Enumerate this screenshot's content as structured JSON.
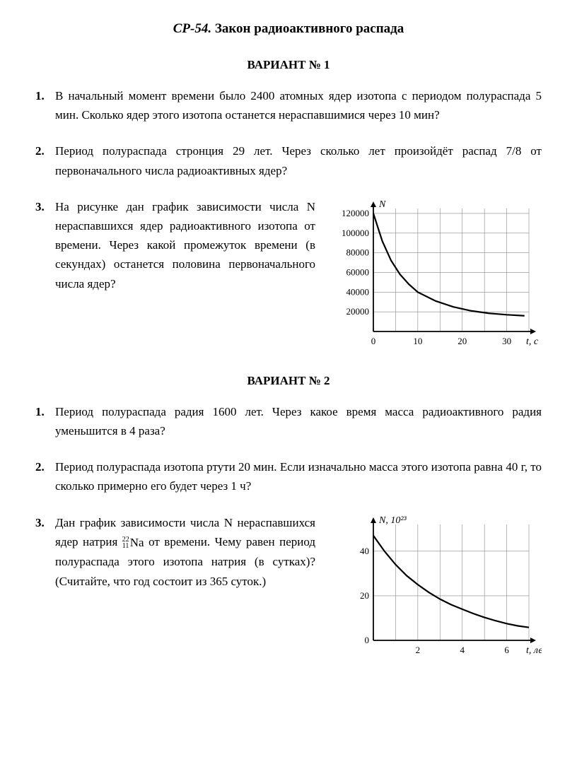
{
  "title_prefix": "СР-54.",
  "title_text": "Закон радиоактивного распада",
  "variant1": {
    "heading": "ВАРИАНТ № 1",
    "p1_num": "1.",
    "p1_text": "В начальный момент времени было 2400 атомных ядер изотопа с периодом полураспада 5 мин. Сколько ядер этого изотопа останется нераспавшимися через 10 мин?",
    "p2_num": "2.",
    "p2_text": "Период полураспада стронция 29 лет. Через сколько лет произойдёт распад 7/8 от первоначального числа радиоактивных ядер?",
    "p3_num": "3.",
    "p3_text": "На рисунке дан график зависимости числа N нераспавшихся ядер радиоактивного изотопа от времени. Через какой промежуток времени (в секундах) останется половина первоначального числа ядер?",
    "chart": {
      "type": "line",
      "y_label": "N",
      "x_label": "t, с",
      "y_ticks": [
        0,
        20000,
        40000,
        60000,
        80000,
        100000,
        120000
      ],
      "y_tick_labels": [
        "",
        "20000",
        "40000",
        "60000",
        "80000",
        "100000",
        "120000"
      ],
      "x_ticks": [
        0,
        10,
        20,
        30
      ],
      "x_tick_labels": [
        "0",
        "10",
        "20",
        "30"
      ],
      "xlim": [
        0,
        35
      ],
      "ylim": [
        0,
        125000
      ],
      "curve": [
        [
          0,
          120000
        ],
        [
          2,
          92000
        ],
        [
          4,
          72000
        ],
        [
          6,
          58000
        ],
        [
          8,
          48000
        ],
        [
          10,
          40000
        ],
        [
          14,
          31000
        ],
        [
          18,
          25000
        ],
        [
          22,
          21000
        ],
        [
          26,
          18500
        ],
        [
          30,
          17000
        ],
        [
          34,
          16000
        ]
      ],
      "line_color": "#000000",
      "line_width": 2.2,
      "grid_color": "#888888",
      "background_color": "#ffffff",
      "font_size": 13
    }
  },
  "variant2": {
    "heading": "ВАРИАНТ № 2",
    "p1_num": "1.",
    "p1_text": "Период полураспада радия 1600 лет. Через какое время масса радиоактивного радия уменьшится в 4 раза?",
    "p2_num": "2.",
    "p2_text": "Период полураспада изотопа ртути 20 мин. Если изначально масса этого изотопа равна 40 г, то сколько примерно его будет через 1 ч?",
    "p3_num": "3.",
    "p3_text_a": "Дан график зависимости числа N нераспавшихся ядер натрия ",
    "p3_iso_sup": "22",
    "p3_iso_sub": "11",
    "p3_iso_elem": "Na",
    "p3_text_b": " от времени. Чему равен период полураспада этого изотопа натрия (в сутках)? (Считайте, что год состоит из 365 суток.)",
    "chart": {
      "type": "line",
      "y_label": "N, 10²³",
      "x_label": "t, лет",
      "y_ticks": [
        0,
        20,
        40
      ],
      "y_tick_labels": [
        "0",
        "20",
        "40"
      ],
      "x_ticks": [
        0,
        2,
        4,
        6
      ],
      "x_tick_labels": [
        "",
        "2",
        "4",
        "6"
      ],
      "xlim": [
        0,
        7
      ],
      "ylim": [
        0,
        52
      ],
      "curve": [
        [
          0,
          47
        ],
        [
          0.5,
          40
        ],
        [
          1,
          34
        ],
        [
          1.5,
          29
        ],
        [
          2,
          25
        ],
        [
          2.5,
          21.5
        ],
        [
          3,
          18.5
        ],
        [
          3.5,
          16
        ],
        [
          4,
          14
        ],
        [
          4.5,
          12
        ],
        [
          5,
          10.3
        ],
        [
          5.5,
          8.8
        ],
        [
          6,
          7.5
        ],
        [
          6.5,
          6.5
        ],
        [
          7,
          5.8
        ]
      ],
      "line_color": "#000000",
      "line_width": 2.2,
      "grid_color": "#888888",
      "background_color": "#ffffff",
      "font_size": 13
    }
  }
}
